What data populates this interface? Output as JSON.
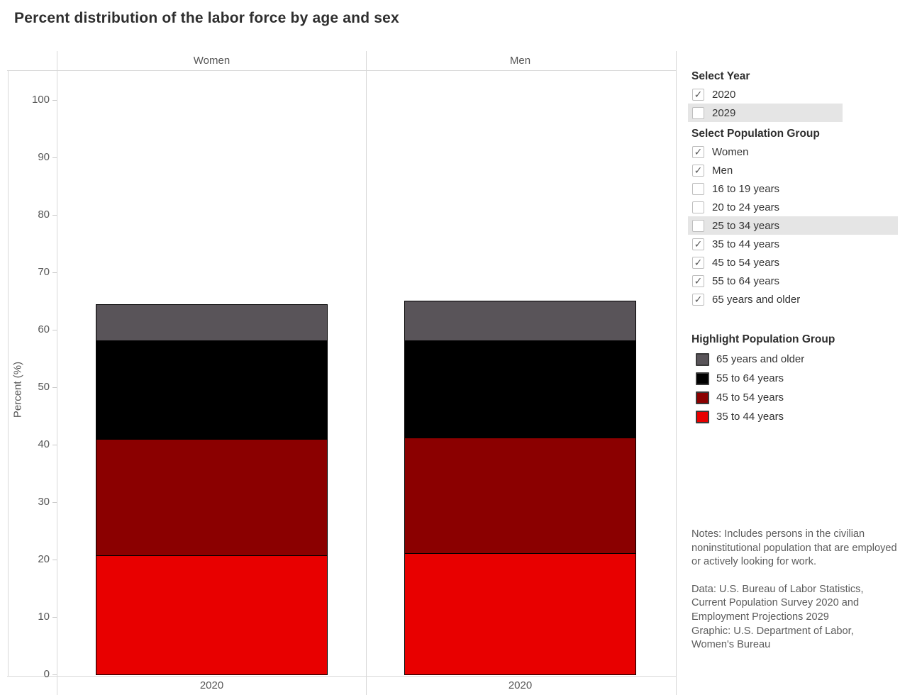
{
  "title": "Percent distribution of the labor force by age and sex",
  "colors": {
    "red": "#e80000",
    "dark_red": "#8b0000",
    "black": "#000000",
    "gray": "#595459",
    "grid_line": "#d8d8d8",
    "highlight_row": "#e5e5e5",
    "muted_text": "#565656",
    "dark_text": "#2e2e2e"
  },
  "chart_data": {
    "type": "bar",
    "stacked": true,
    "title": "Percent distribution of the labor force by age and sex",
    "ylabel": "Percent (%)",
    "ylim": [
      0,
      105
    ],
    "yticks": [
      0,
      10,
      20,
      30,
      40,
      50,
      60,
      70,
      80,
      90,
      100
    ],
    "grid": false,
    "legend_position": "right",
    "panels": [
      {
        "header": "Women",
        "x_label": "2020",
        "segments": [
          {
            "label": "35 to 44 years",
            "color": "red",
            "value": 20.8
          },
          {
            "label": "45 to 54 years",
            "color": "dark_red",
            "value": 20.2
          },
          {
            "label": "55 to 64 years",
            "color": "black",
            "value": 17.1
          },
          {
            "label": "65 years and older",
            "color": "gray",
            "value": 6.4
          }
        ],
        "total": 64.5
      },
      {
        "header": "Men",
        "x_label": "2020",
        "segments": [
          {
            "label": "35 to 44 years",
            "color": "red",
            "value": 21.1
          },
          {
            "label": "45 to 54 years",
            "color": "dark_red",
            "value": 20.1
          },
          {
            "label": "55 to 64 years",
            "color": "black",
            "value": 17.0
          },
          {
            "label": "65 years and older",
            "color": "gray",
            "value": 6.9
          }
        ],
        "total": 65.1
      }
    ]
  },
  "controls": {
    "check_glyph": "✓",
    "select_year": {
      "title": "Select Year",
      "items": [
        {
          "label": "2020",
          "checked": true,
          "highlighted": false
        },
        {
          "label": "2029",
          "checked": false,
          "highlighted": true
        }
      ]
    },
    "select_population": {
      "title": "Select Population Group",
      "items": [
        {
          "label": "Women",
          "checked": true,
          "highlighted": false
        },
        {
          "label": "Men",
          "checked": true,
          "highlighted": false
        },
        {
          "label": "16 to 19 years",
          "checked": false,
          "highlighted": false
        },
        {
          "label": "20 to 24 years",
          "checked": false,
          "highlighted": false
        },
        {
          "label": "25 to 34 years",
          "checked": false,
          "highlighted": true
        },
        {
          "label": "35 to 44 years",
          "checked": true,
          "highlighted": false
        },
        {
          "label": "45 to 54 years",
          "checked": true,
          "highlighted": false
        },
        {
          "label": "55 to 64 years",
          "checked": true,
          "highlighted": false
        },
        {
          "label": "65 years and older",
          "checked": true,
          "highlighted": false
        }
      ]
    },
    "highlight_legend": {
      "title": "Highlight Population Group",
      "items": [
        {
          "label": "65 years and older",
          "color": "gray"
        },
        {
          "label": "55 to 64 years",
          "color": "black"
        },
        {
          "label": "45 to 54 years",
          "color": "dark_red"
        },
        {
          "label": "35 to 44 years",
          "color": "red"
        }
      ]
    }
  },
  "notes": {
    "notes_text": "Notes: Includes persons in the civilian noninstitutional population that are employed or actively looking for work.",
    "data_text": "Data: U.S. Bureau of Labor Statistics, Current Population Survey 2020 and Employment Projections 2029",
    "graphic_text": "Graphic: U.S. Department of Labor, Women's Bureau"
  }
}
